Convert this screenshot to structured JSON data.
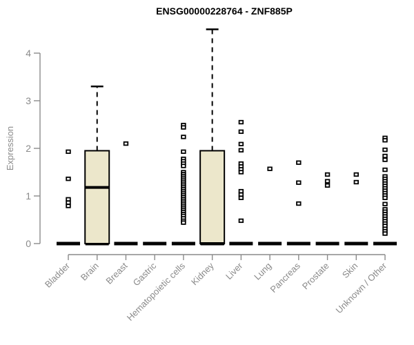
{
  "chart_data": {
    "type": "boxplot",
    "title": "ENSG00000228764 - ZNF885P",
    "ylabel": "Expression",
    "xlabel": "",
    "ylim": [
      0,
      4.6
    ],
    "yticks": [
      0,
      1,
      2,
      3,
      4
    ],
    "grid": false,
    "legend": false,
    "baseline_bar_at_zero": true,
    "categories": [
      "Bladder",
      "Brain",
      "Breast",
      "Gastric",
      "Hematopoietic cells",
      "Kidney",
      "Liver",
      "Lung",
      "Pancreas",
      "Prostate",
      "Skin",
      "Unknown / Other"
    ],
    "boxes": [
      {
        "category": "Brain",
        "q1": 0,
        "median": 1.18,
        "q3": 1.95,
        "whisker_low": 0,
        "whisker_high": 3.3
      },
      {
        "category": "Kidney",
        "q1": 0,
        "median": 0,
        "q3": 1.95,
        "whisker_low": 0,
        "whisker_high": 4.5
      }
    ],
    "points": {
      "Bladder": [
        1.93,
        1.36,
        0.93,
        0.86,
        0.79
      ],
      "Brain": [],
      "Breast": [
        2.1
      ],
      "Gastric": [],
      "Hematopoietic cells": [
        2.49,
        2.44,
        2.24,
        1.93,
        1.78,
        1.73,
        1.68,
        1.63,
        1.5,
        1.46,
        1.42,
        1.38,
        1.34,
        1.3,
        1.26,
        1.22,
        1.18,
        1.14,
        1.1,
        1.06,
        1.02,
        0.98,
        0.94,
        0.9,
        0.86,
        0.82,
        0.78,
        0.74,
        0.7,
        0.66,
        0.62,
        0.58,
        0.53,
        0.48,
        0.44
      ],
      "Kidney": [],
      "Liver": [
        2.55,
        2.35,
        2.09,
        1.96,
        1.68,
        1.62,
        1.56,
        1.5,
        1.1,
        1.03,
        0.96,
        0.48
      ],
      "Lung": [
        1.57
      ],
      "Pancreas": [
        1.7,
        1.28,
        0.84
      ],
      "Prostate": [
        1.45,
        1.31,
        1.22
      ],
      "Skin": [
        1.45,
        1.29
      ],
      "Unknown / Other": [
        2.22,
        2.17,
        1.97,
        1.84,
        1.76,
        1.55,
        1.41,
        1.36,
        1.31,
        1.26,
        1.21,
        1.16,
        1.11,
        1.06,
        1.01,
        0.96,
        0.83,
        0.72,
        0.67,
        0.62,
        0.57,
        0.52,
        0.47,
        0.42,
        0.37,
        0.31,
        0.26,
        0.21
      ]
    },
    "colors": {
      "box_fill": "#ece7cb",
      "box_border": "#000000",
      "point": "#000000",
      "zero_bar": "#000000",
      "axis": "#8a8a8a",
      "tick_label": "#8a8a8a",
      "title": "#000000",
      "background": "#ffffff"
    }
  }
}
